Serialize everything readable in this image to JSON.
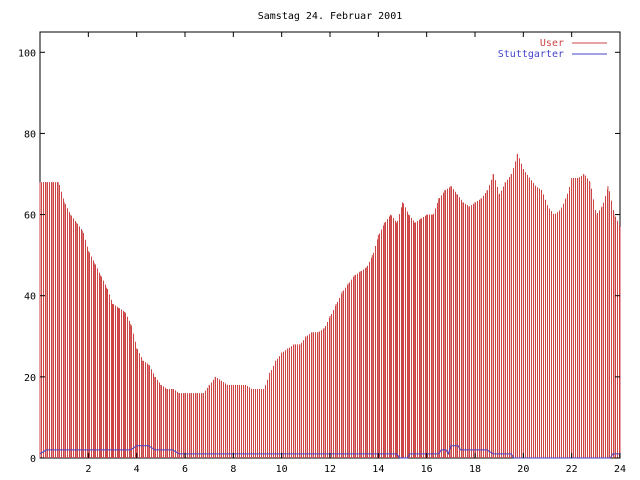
{
  "chart_data": {
    "type": "bar",
    "title": "Samstag 24. Februar 2001",
    "xlabel": "",
    "ylabel": "",
    "xlim": [
      0,
      24
    ],
    "ylim": [
      0,
      105
    ],
    "x_ticks": [
      2,
      4,
      6,
      8,
      10,
      12,
      14,
      16,
      18,
      20,
      22,
      24
    ],
    "y_ticks": [
      0,
      20,
      40,
      60,
      80,
      100
    ],
    "grid": false,
    "legend_position": "top-right",
    "series": [
      {
        "name": "User",
        "color": "#cc4444",
        "style": "impulses",
        "points": [
          [
            0.0,
            68
          ],
          [
            0.25,
            68
          ],
          [
            0.5,
            68
          ],
          [
            0.75,
            68
          ],
          [
            1.0,
            63
          ],
          [
            1.25,
            60
          ],
          [
            1.5,
            58
          ],
          [
            1.75,
            56
          ],
          [
            2.0,
            51
          ],
          [
            2.25,
            48
          ],
          [
            2.5,
            45
          ],
          [
            2.75,
            42
          ],
          [
            3.0,
            38
          ],
          [
            3.25,
            37
          ],
          [
            3.5,
            36
          ],
          [
            3.75,
            33
          ],
          [
            4.0,
            27
          ],
          [
            4.25,
            24
          ],
          [
            4.5,
            23
          ],
          [
            4.75,
            20
          ],
          [
            5.0,
            18
          ],
          [
            5.25,
            17
          ],
          [
            5.5,
            17
          ],
          [
            5.75,
            16
          ],
          [
            6.0,
            16
          ],
          [
            6.25,
            16
          ],
          [
            6.5,
            16
          ],
          [
            6.75,
            16
          ],
          [
            7.0,
            18
          ],
          [
            7.25,
            20
          ],
          [
            7.5,
            19
          ],
          [
            7.75,
            18
          ],
          [
            8.0,
            18
          ],
          [
            8.25,
            18
          ],
          [
            8.5,
            18
          ],
          [
            8.75,
            17
          ],
          [
            9.0,
            17
          ],
          [
            9.25,
            17
          ],
          [
            9.5,
            21
          ],
          [
            9.75,
            24
          ],
          [
            10.0,
            26
          ],
          [
            10.25,
            27
          ],
          [
            10.5,
            28
          ],
          [
            10.75,
            28
          ],
          [
            11.0,
            30
          ],
          [
            11.25,
            31
          ],
          [
            11.5,
            31
          ],
          [
            11.75,
            32
          ],
          [
            12.0,
            35
          ],
          [
            12.25,
            38
          ],
          [
            12.5,
            41
          ],
          [
            12.75,
            43
          ],
          [
            13.0,
            45
          ],
          [
            13.25,
            46
          ],
          [
            13.5,
            47
          ],
          [
            13.75,
            50
          ],
          [
            14.0,
            55
          ],
          [
            14.25,
            58
          ],
          [
            14.5,
            60
          ],
          [
            14.75,
            58
          ],
          [
            15.0,
            63
          ],
          [
            15.25,
            60
          ],
          [
            15.5,
            58
          ],
          [
            15.75,
            59
          ],
          [
            16.0,
            60
          ],
          [
            16.25,
            60
          ],
          [
            16.5,
            64
          ],
          [
            16.75,
            66
          ],
          [
            17.0,
            67
          ],
          [
            17.25,
            65
          ],
          [
            17.5,
            63
          ],
          [
            17.75,
            62
          ],
          [
            18.0,
            63
          ],
          [
            18.25,
            64
          ],
          [
            18.5,
            66
          ],
          [
            18.75,
            70
          ],
          [
            19.0,
            65
          ],
          [
            19.25,
            68
          ],
          [
            19.5,
            70
          ],
          [
            19.75,
            75
          ],
          [
            20.0,
            71
          ],
          [
            20.25,
            69
          ],
          [
            20.5,
            67
          ],
          [
            20.75,
            66
          ],
          [
            21.0,
            62
          ],
          [
            21.25,
            60
          ],
          [
            21.5,
            61
          ],
          [
            21.75,
            64
          ],
          [
            22.0,
            69
          ],
          [
            22.25,
            69
          ],
          [
            22.5,
            70
          ],
          [
            22.75,
            68
          ],
          [
            23.0,
            60
          ],
          [
            23.25,
            62
          ],
          [
            23.5,
            67
          ],
          [
            23.75,
            60
          ],
          [
            24.0,
            57
          ]
        ]
      },
      {
        "name": "Stuttgarter",
        "color": "#4444cc",
        "style": "lines",
        "points": [
          [
            0.0,
            1
          ],
          [
            0.25,
            2
          ],
          [
            1.0,
            2
          ],
          [
            2.0,
            2
          ],
          [
            3.0,
            2
          ],
          [
            3.5,
            2
          ],
          [
            3.75,
            2
          ],
          [
            4.0,
            3
          ],
          [
            4.5,
            3
          ],
          [
            4.75,
            2
          ],
          [
            5.0,
            2
          ],
          [
            5.5,
            2
          ],
          [
            5.75,
            1
          ],
          [
            6.0,
            1
          ],
          [
            8.0,
            1
          ],
          [
            10.0,
            1
          ],
          [
            12.0,
            1
          ],
          [
            14.0,
            1
          ],
          [
            14.5,
            1
          ],
          [
            14.75,
            1
          ],
          [
            14.9,
            0
          ],
          [
            15.2,
            0
          ],
          [
            15.3,
            1
          ],
          [
            16.0,
            1
          ],
          [
            16.5,
            1
          ],
          [
            16.6,
            2
          ],
          [
            16.8,
            2
          ],
          [
            16.9,
            1
          ],
          [
            17.0,
            3
          ],
          [
            17.3,
            3
          ],
          [
            17.4,
            2
          ],
          [
            18.0,
            2
          ],
          [
            18.5,
            2
          ],
          [
            18.75,
            1
          ],
          [
            19.5,
            1
          ],
          [
            19.6,
            0
          ],
          [
            23.6,
            0
          ],
          [
            23.7,
            1
          ],
          [
            24.0,
            1
          ]
        ]
      }
    ]
  }
}
